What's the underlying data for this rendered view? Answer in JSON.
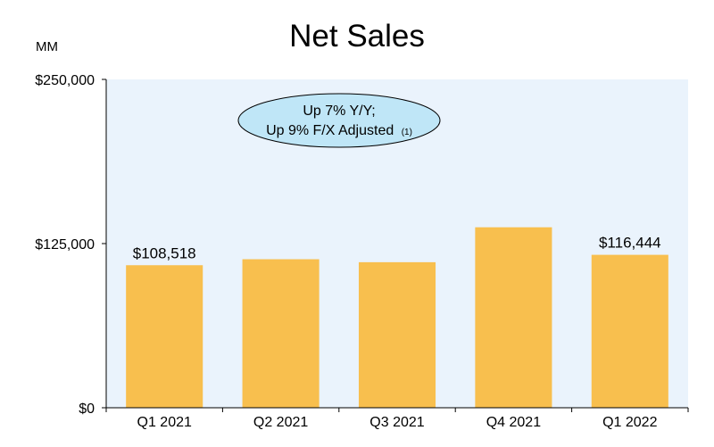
{
  "chart_data": {
    "type": "bar",
    "title": "Net Sales",
    "unit_label": "MM",
    "categories": [
      "Q1 2021",
      "Q2 2021",
      "Q3 2021",
      "Q4 2021",
      "Q1 2022"
    ],
    "values": [
      108518,
      113080,
      110812,
      137412,
      116444
    ],
    "data_labels": [
      "$108,518",
      "",
      "",
      "",
      "$116,444"
    ],
    "ylim": [
      0,
      250000
    ],
    "yticks": [
      0,
      125000,
      250000
    ],
    "ytick_labels": [
      "$0",
      "$125,000",
      "$250,000"
    ],
    "grid": false,
    "colors": {
      "bar": "#F8BF4E",
      "plot_background": "#EAF3FC",
      "callout_fill": "#BFE6F7"
    },
    "callout": {
      "line1": "Up 7% Y/Y;",
      "line2": "Up 9% F/X Adjusted",
      "reference": "(1)"
    }
  }
}
